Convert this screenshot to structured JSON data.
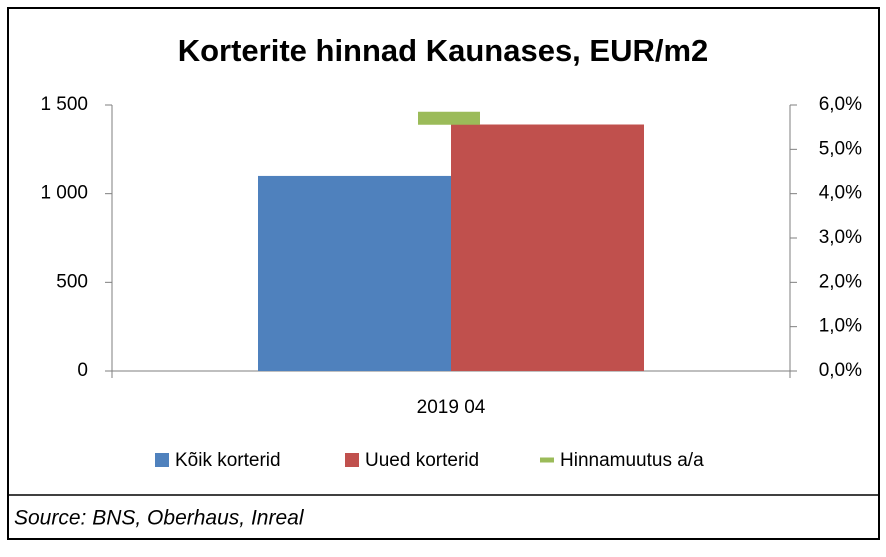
{
  "chart_data": {
    "type": "bar",
    "title": "Korterite hinnad Kaunases, EUR/m2",
    "categories": [
      "2019 04"
    ],
    "series": [
      {
        "name": "Kõik korterid",
        "color": "#4f81bd",
        "values": [
          1100
        ]
      },
      {
        "name": "Uued korterid",
        "color": "#c0504d",
        "values": [
          1390
        ]
      },
      {
        "name": "Hinnamuutus a/a",
        "color": "#9bbb59",
        "values": [
          5.7
        ],
        "axis": "y2"
      }
    ],
    "ylim": [
      0,
      1500
    ],
    "yticks": [
      0,
      500,
      {
        "value": 1000,
        "label": "1 000"
      },
      {
        "value": 1500,
        "label": "1 500"
      }
    ],
    "y2lim": [
      0,
      6
    ],
    "y2ticks": [
      {
        "value": 0,
        "label": "0,0%"
      },
      {
        "value": 1,
        "label": "1,0%"
      },
      {
        "value": 2,
        "label": "2,0%"
      },
      {
        "value": 3,
        "label": "3,0%"
      },
      {
        "value": 4,
        "label": "4,0%"
      },
      {
        "value": 5,
        "label": "5,0%"
      },
      {
        "value": 6,
        "label": "6,0%"
      }
    ],
    "legend": "bottom",
    "source": "Source: BNS, Oberhaus, Inreal"
  }
}
